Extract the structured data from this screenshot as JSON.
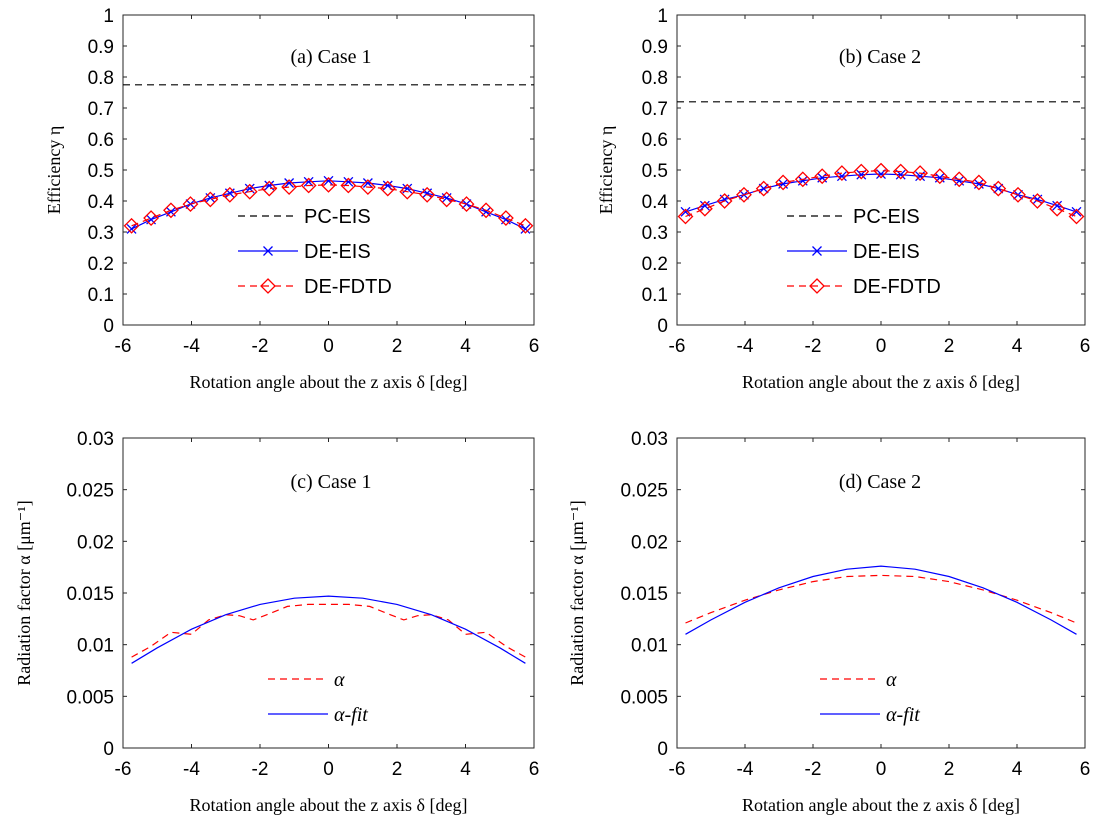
{
  "chart_data": [
    {
      "type": "line",
      "title": "(a) Case 1",
      "xlabel": "Rotation angle about the z axis δ [deg]",
      "ylabel": "Efficiency η",
      "xlim": [
        -6,
        6
      ],
      "ylim": [
        0,
        1
      ],
      "xticks": [
        "-6",
        "-4",
        "-2",
        "0",
        "2",
        "4",
        "6"
      ],
      "yticks": [
        "0",
        "0.1",
        "0.2",
        "0.3",
        "0.4",
        "0.5",
        "0.6",
        "0.7",
        "0.8",
        "0.9",
        "1"
      ],
      "legend_position": "lower-center",
      "x": [
        -5.75,
        -5.18,
        -4.6,
        -4.03,
        -3.45,
        -2.88,
        -2.3,
        -1.73,
        -1.15,
        -0.58,
        0,
        0.58,
        1.15,
        1.73,
        2.3,
        2.88,
        3.45,
        4.03,
        4.6,
        5.18,
        5.75
      ],
      "series": [
        {
          "name": "PC-EIS",
          "style": "dashed",
          "color": "#000000",
          "x": [
            -6,
            6
          ],
          "values": [
            0.775,
            0.775
          ]
        },
        {
          "name": "DE-EIS",
          "style": "solid-x",
          "color": "#0000ff",
          "values": [
            0.31,
            0.34,
            0.365,
            0.39,
            0.41,
            0.425,
            0.44,
            0.45,
            0.458,
            0.462,
            0.465,
            0.462,
            0.458,
            0.45,
            0.44,
            0.425,
            0.41,
            0.39,
            0.365,
            0.34,
            0.31
          ]
        },
        {
          "name": "DE-FDTD",
          "style": "dashed-diamond",
          "color": "#ff0000",
          "values": [
            0.32,
            0.345,
            0.37,
            0.39,
            0.405,
            0.42,
            0.43,
            0.44,
            0.445,
            0.45,
            0.452,
            0.45,
            0.445,
            0.44,
            0.43,
            0.42,
            0.405,
            0.39,
            0.37,
            0.345,
            0.32
          ]
        }
      ]
    },
    {
      "type": "line",
      "title": "(b) Case 2",
      "xlabel": "Rotation angle about the z axis δ [deg]",
      "ylabel": "Efficiency η",
      "xlim": [
        -6,
        6
      ],
      "ylim": [
        0,
        1
      ],
      "xticks": [
        "-6",
        "-4",
        "-2",
        "0",
        "2",
        "4",
        "6"
      ],
      "yticks": [
        "0",
        "0.1",
        "0.2",
        "0.3",
        "0.4",
        "0.5",
        "0.6",
        "0.7",
        "0.8",
        "0.9",
        "1"
      ],
      "legend_position": "lower-center",
      "x": [
        -5.75,
        -5.18,
        -4.6,
        -4.03,
        -3.45,
        -2.88,
        -2.3,
        -1.73,
        -1.15,
        -0.58,
        0,
        0.58,
        1.15,
        1.73,
        2.3,
        2.88,
        3.45,
        4.03,
        4.6,
        5.18,
        5.75
      ],
      "series": [
        {
          "name": "PC-EIS",
          "style": "dashed",
          "color": "#000000",
          "x": [
            -6,
            6
          ],
          "values": [
            0.72,
            0.72
          ]
        },
        {
          "name": "DE-EIS",
          "style": "solid-x",
          "color": "#0000ff",
          "values": [
            0.365,
            0.385,
            0.405,
            0.42,
            0.44,
            0.455,
            0.465,
            0.475,
            0.48,
            0.485,
            0.487,
            0.485,
            0.48,
            0.475,
            0.465,
            0.455,
            0.44,
            0.42,
            0.405,
            0.385,
            0.365
          ]
        },
        {
          "name": "DE-FDTD",
          "style": "dashed-diamond",
          "color": "#ff0000",
          "values": [
            0.35,
            0.375,
            0.4,
            0.42,
            0.44,
            0.46,
            0.47,
            0.48,
            0.49,
            0.495,
            0.498,
            0.495,
            0.49,
            0.48,
            0.47,
            0.46,
            0.44,
            0.42,
            0.4,
            0.375,
            0.35
          ]
        }
      ]
    },
    {
      "type": "line",
      "title": "(c) Case 1",
      "xlabel": "Rotation angle about the z axis δ [deg]",
      "ylabel": "Radiation factor α [μm⁻¹]",
      "xlim": [
        -6,
        6
      ],
      "ylim": [
        0,
        0.03
      ],
      "xticks": [
        "-6",
        "-4",
        "-2",
        "0",
        "2",
        "4",
        "6"
      ],
      "yticks": [
        "0",
        "0.005",
        "0.01",
        "0.015",
        "0.02",
        "0.025",
        "0.03"
      ],
      "legend_position": "lower-center",
      "series": [
        {
          "name": "α",
          "style": "dashed",
          "color": "#ff0000",
          "x": [
            -5.75,
            -5.2,
            -4.6,
            -4.0,
            -3.5,
            -3.0,
            -2.6,
            -2.2,
            -1.8,
            -1.2,
            -0.6,
            0,
            0.6,
            1.2,
            1.8,
            2.2,
            2.6,
            3.0,
            3.5,
            4.0,
            4.6,
            5.2,
            5.75
          ],
          "values": [
            0.0088,
            0.0098,
            0.0112,
            0.011,
            0.0124,
            0.0129,
            0.0128,
            0.0124,
            0.0129,
            0.0137,
            0.0139,
            0.0139,
            0.0139,
            0.0137,
            0.0129,
            0.0124,
            0.0128,
            0.0129,
            0.0124,
            0.011,
            0.0112,
            0.0098,
            0.0088
          ]
        },
        {
          "name": "α-fit",
          "style": "solid",
          "color": "#0000ff",
          "x": [
            -5.75,
            -5,
            -4,
            -3,
            -2,
            -1,
            0,
            1,
            2,
            3,
            4,
            5,
            5.75
          ],
          "values": [
            0.0082,
            0.0097,
            0.0115,
            0.0129,
            0.0139,
            0.0145,
            0.0147,
            0.0145,
            0.0139,
            0.0129,
            0.0115,
            0.0097,
            0.0082
          ]
        }
      ]
    },
    {
      "type": "line",
      "title": "(d) Case 2",
      "xlabel": "Rotation angle about the z axis δ [deg]",
      "ylabel": "Radiation factor α [μm⁻¹]",
      "xlim": [
        -6,
        6
      ],
      "ylim": [
        0,
        0.03
      ],
      "xticks": [
        "-6",
        "-4",
        "-2",
        "0",
        "2",
        "4",
        "6"
      ],
      "yticks": [
        "0",
        "0.005",
        "0.01",
        "0.015",
        "0.02",
        "0.025",
        "0.03"
      ],
      "legend_position": "lower-center",
      "series": [
        {
          "name": "α",
          "style": "dashed",
          "color": "#ff0000",
          "x": [
            -5.75,
            -5,
            -4,
            -3,
            -2,
            -1,
            0,
            1,
            2,
            3,
            4,
            5,
            5.75
          ],
          "values": [
            0.0121,
            0.0131,
            0.0143,
            0.0153,
            0.0161,
            0.0166,
            0.0167,
            0.0166,
            0.0161,
            0.0153,
            0.0143,
            0.0131,
            0.0121
          ]
        },
        {
          "name": "α-fit",
          "style": "solid",
          "color": "#0000ff",
          "x": [
            -5.75,
            -5,
            -4,
            -3,
            -2,
            -1,
            0,
            1,
            2,
            3,
            4,
            5,
            5.75
          ],
          "values": [
            0.011,
            0.0124,
            0.0141,
            0.0155,
            0.0166,
            0.0173,
            0.0176,
            0.0173,
            0.0166,
            0.0155,
            0.0141,
            0.0124,
            0.011
          ]
        }
      ]
    }
  ]
}
